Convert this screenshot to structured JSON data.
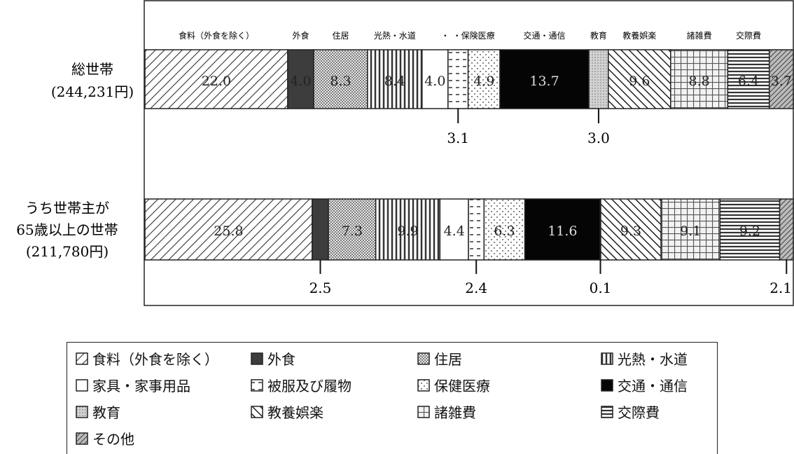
{
  "chart_data": {
    "type": "bar",
    "orientation": "horizontal-stacked-percent",
    "top_labels": [
      "食料（外食を除く）",
      "外食",
      "住居",
      "光熱・水道",
      "・",
      "・保険医療",
      "交通・通信",
      "教育",
      "教養娯楽",
      "諸雑費",
      "交際費"
    ],
    "rows": [
      {
        "label_line1": "総世帯",
        "label_line2": "(244,231円)",
        "label_line3": "",
        "values": [
          22.0,
          4.0,
          8.3,
          8.4,
          4.0,
          3.1,
          4.9,
          13.7,
          3.0,
          9.6,
          8.8,
          6.4,
          3.7
        ],
        "value_labels": [
          "22.0",
          "4.0",
          "8.3",
          "8.4",
          "4.0",
          "",
          "4.9",
          "13.7",
          "",
          "9.6",
          "8.8",
          "6.4",
          "3.7"
        ],
        "callouts": [
          {
            "category_index": 5,
            "text": "3.1"
          },
          {
            "category_index": 8,
            "text": "3.0"
          }
        ]
      },
      {
        "label_line1": "うち世帯主が",
        "label_line2": "65歳以上の世帯",
        "label_line3": "(211,780円)",
        "values": [
          25.8,
          2.5,
          7.3,
          9.9,
          4.4,
          2.4,
          6.3,
          11.6,
          0.1,
          9.3,
          9.1,
          9.2,
          2.1
        ],
        "value_labels": [
          "25.8",
          "",
          "7.3",
          "9.9",
          "4.4",
          "",
          "6.3",
          "11.6",
          "",
          "9.3",
          "9.1",
          "9.2",
          ""
        ],
        "callouts": [
          {
            "category_index": 1,
            "text": "2.5"
          },
          {
            "category_index": 5,
            "text": "2.4"
          },
          {
            "category_index": 8,
            "text": "0.1"
          },
          {
            "category_index": 12,
            "text": "2.1"
          }
        ]
      }
    ],
    "categories": [
      "食料（外食を除く）",
      "外食",
      "住居",
      "光熱・水道",
      "家具・家事用品",
      "被服及び履物",
      "保健医療",
      "交通・通信",
      "教育",
      "教養娯楽",
      "諸雑費",
      "交際費",
      "その他"
    ],
    "patterns": [
      "diag",
      "dark",
      "dots",
      "vlines",
      "white",
      "dashes",
      "sparse",
      "black",
      "grey",
      "back",
      "grid",
      "hlines",
      "cross"
    ],
    "legend_placement": "bottom"
  }
}
